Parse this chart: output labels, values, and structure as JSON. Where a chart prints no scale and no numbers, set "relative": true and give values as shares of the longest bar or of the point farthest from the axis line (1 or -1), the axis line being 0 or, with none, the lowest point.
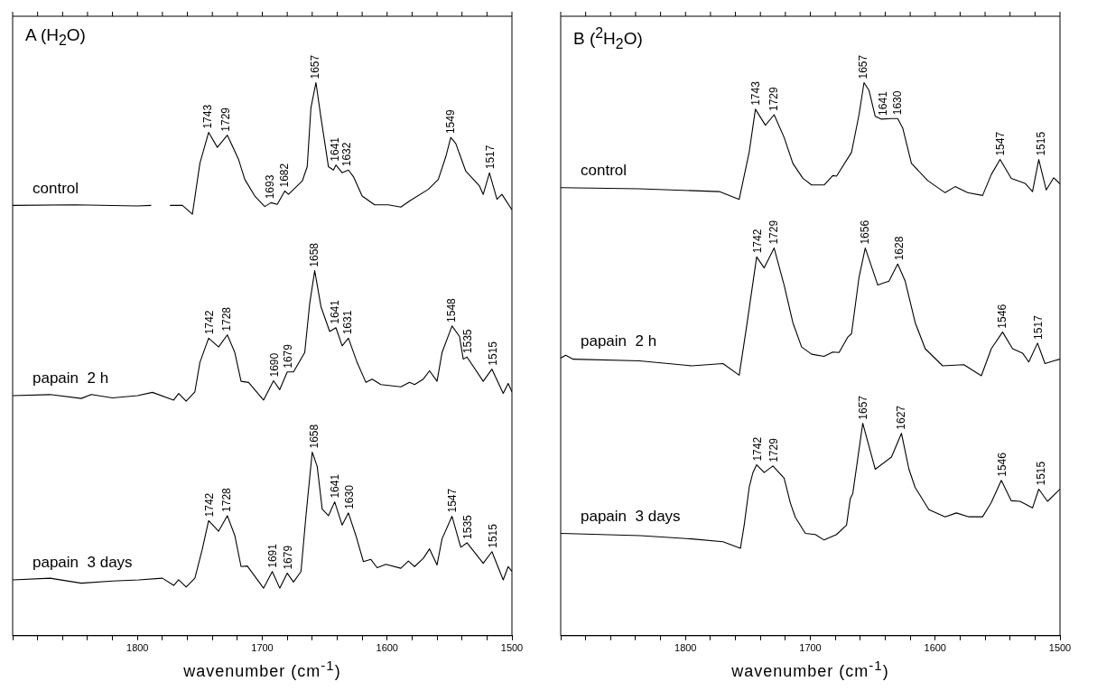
{
  "chart_data": [
    {
      "type": "line",
      "title": "A (H$_{2}$O)",
      "xlabel": "wavenumber (cm$^{-1}$)",
      "relative": true,
      "marker": "none",
      "grid": false,
      "tick_labels": "x",
      "xlim": [
        1900,
        1500
      ],
      "xticks": [
        {
          "value": 1900,
          "label": null
        },
        {
          "value": 1880,
          "label": null
        },
        {
          "value": 1860,
          "label": null
        },
        {
          "value": 1840,
          "label": null
        },
        {
          "value": 1820,
          "label": null
        },
        1800,
        {
          "value": 1780,
          "label": null
        },
        {
          "value": 1760,
          "label": null
        },
        {
          "value": 1740,
          "label": null
        },
        {
          "value": 1720,
          "label": null
        },
        1700,
        {
          "value": 1680,
          "label": null
        },
        {
          "value": 1660,
          "label": null
        },
        {
          "value": 1640,
          "label": null
        },
        {
          "value": 1620,
          "label": null
        },
        1600,
        {
          "value": 1580,
          "label": null
        },
        {
          "value": 1560,
          "label": null
        },
        {
          "value": 1540,
          "label": null
        },
        {
          "value": 1520,
          "label": null
        },
        1500
      ],
      "series": [
        {
          "name": "control",
          "color": "#000000",
          "x": [
            1900,
            1850,
            1800,
            1789,
            1781,
            1774,
            1764,
            1756,
            1750,
            1743,
            1736,
            1728,
            1719,
            1714,
            1706,
            1698,
            1693,
            1688,
            1682,
            1679,
            1668,
            1664,
            1661,
            1657,
            1653,
            1647,
            1643,
            1641,
            1636,
            1631,
            1627,
            1620,
            1610,
            1599,
            1589,
            1582,
            1567,
            1559,
            1553,
            1549,
            1545,
            1537,
            1526,
            1523,
            1518,
            1512,
            1508,
            1500
          ],
          "values": [
            0.778,
            0.779,
            0.777,
            0.778,
            null,
            0.778,
            0.778,
            0.762,
            0.854,
            0.91,
            0.883,
            0.905,
            0.861,
            0.825,
            0.795,
            0.776,
            0.783,
            0.78,
            0.804,
            0.798,
            0.822,
            0.848,
            0.955,
            1,
            0.937,
            0.848,
            0.842,
            0.851,
            0.837,
            0.842,
            0.83,
            0.795,
            0.779,
            0.779,
            0.775,
            0.786,
            0.807,
            0.825,
            0.866,
            0.901,
            0.89,
            0.84,
            0.813,
            0.798,
            0.837,
            0.789,
            0.798,
            0.77
          ]
        },
        {
          "name": "papain  2 h",
          "color": "#000000",
          "x": [
            1900,
            1870,
            1845,
            1837,
            1820,
            1800,
            1788,
            1771,
            1767,
            1761,
            1754,
            1750,
            1743,
            1735,
            1728,
            1722,
            1717,
            1711,
            1699,
            1691,
            1686,
            1680,
            1675,
            1666,
            1662,
            1658,
            1653,
            1646,
            1641,
            1636,
            1631,
            1624,
            1617,
            1612,
            1605,
            1589,
            1582,
            1578,
            1571,
            1566,
            1560,
            1556,
            1548,
            1542,
            1539,
            1536,
            1523,
            1516,
            1507,
            1503,
            1500
          ],
          "values": [
            0.434,
            0.436,
            0.429,
            0.436,
            0.43,
            0.434,
            0.44,
            0.426,
            0.438,
            0.424,
            0.441,
            0.494,
            0.538,
            0.522,
            0.544,
            0.512,
            0.46,
            0.458,
            0.426,
            0.461,
            0.445,
            0.477,
            0.477,
            0.512,
            0.601,
            0.66,
            0.595,
            0.55,
            0.557,
            0.524,
            0.538,
            0.494,
            0.458,
            0.464,
            0.454,
            0.45,
            0.458,
            0.454,
            0.464,
            0.479,
            0.46,
            0.512,
            0.56,
            0.541,
            0.5,
            0.504,
            0.46,
            0.482,
            0.438,
            0.456,
            0.441
          ]
        },
        {
          "name": "papain  3 days",
          "color": "#000000",
          "x": [
            1900,
            1870,
            1845,
            1820,
            1799,
            1780,
            1771,
            1767,
            1761,
            1754,
            1748,
            1743,
            1735,
            1728,
            1722,
            1717,
            1712,
            1699,
            1692,
            1686,
            1680,
            1675,
            1669,
            1665,
            1660,
            1656,
            1652,
            1647,
            1642,
            1636,
            1631,
            1625,
            1619,
            1613,
            1608,
            1601,
            1589,
            1583,
            1578,
            1571,
            1566,
            1560,
            1556,
            1548,
            1541,
            1536,
            1523,
            1516,
            1507,
            1503,
            1500
          ],
          "values": [
            0.101,
            0.104,
            0.095,
            0.099,
            0.101,
            0.104,
            0.091,
            0.101,
            0.088,
            0.104,
            0.157,
            0.208,
            0.189,
            0.217,
            0.181,
            0.125,
            0.126,
            0.086,
            0.116,
            0.086,
            0.113,
            0.097,
            0.116,
            0.217,
            0.332,
            0.306,
            0.229,
            0.217,
            0.242,
            0.2,
            0.222,
            0.181,
            0.134,
            0.138,
            0.123,
            0.129,
            0.122,
            0.135,
            0.125,
            0.14,
            0.157,
            0.128,
            0.175,
            0.216,
            0.16,
            0.168,
            0.131,
            0.152,
            0.101,
            0.125,
            0.116
          ]
        }
      ],
      "annotations": [
        {
          "text": "1743",
          "x": 1743,
          "y": 0.91
        },
        {
          "text": "1729",
          "x": 1729,
          "y": 0.905
        },
        {
          "text": "1693",
          "x": 1693,
          "y": 0.783
        },
        {
          "text": "1682",
          "x": 1682,
          "y": 0.804
        },
        {
          "text": "1657",
          "x": 1657,
          "y": 1
        },
        {
          "text": "1641",
          "x": 1641,
          "y": 0.851
        },
        {
          "text": "1632",
          "x": 1632,
          "y": 0.842
        },
        {
          "text": "1549",
          "x": 1549,
          "y": 0.901
        },
        {
          "text": "1517",
          "x": 1517,
          "y": 0.837
        },
        {
          "text": "1742",
          "x": 1742,
          "y": 0.538
        },
        {
          "text": "1728",
          "x": 1728,
          "y": 0.544
        },
        {
          "text": "1690",
          "x": 1690,
          "y": 0.461
        },
        {
          "text": "1679",
          "x": 1679,
          "y": 0.477
        },
        {
          "text": "1658",
          "x": 1658,
          "y": 0.66
        },
        {
          "text": "1641",
          "x": 1641,
          "y": 0.557
        },
        {
          "text": "1631",
          "x": 1631,
          "y": 0.538
        },
        {
          "text": "1548",
          "x": 1548,
          "y": 0.56
        },
        {
          "text": "1535",
          "x": 1535,
          "y": 0.504
        },
        {
          "text": "1515",
          "x": 1515,
          "y": 0.482
        },
        {
          "text": "1742",
          "x": 1742,
          "y": 0.208
        },
        {
          "text": "1728",
          "x": 1728,
          "y": 0.217
        },
        {
          "text": "1691",
          "x": 1691,
          "y": 0.116
        },
        {
          "text": "1679",
          "x": 1679,
          "y": 0.113
        },
        {
          "text": "1658",
          "x": 1658,
          "y": 0.332
        },
        {
          "text": "1641",
          "x": 1641,
          "y": 0.242
        },
        {
          "text": "1630",
          "x": 1630,
          "y": 0.222
        },
        {
          "text": "1547",
          "x": 1547,
          "y": 0.216
        },
        {
          "text": "1535",
          "x": 1535,
          "y": 0.168
        },
        {
          "text": "1515",
          "x": 1515,
          "y": 0.152
        }
      ]
    },
    {
      "type": "line",
      "title": "B ($^{2}$H$_{2}$O)",
      "xlabel": "wavenumber (cm$^{-1}$)",
      "relative": true,
      "marker": "none",
      "grid": false,
      "tick_labels": "x",
      "xlim": [
        1900,
        1500
      ],
      "xticks": [
        {
          "value": 1900,
          "label": null
        },
        {
          "value": 1880,
          "label": null
        },
        {
          "value": 1860,
          "label": null
        },
        {
          "value": 1840,
          "label": null
        },
        {
          "value": 1820,
          "label": null
        },
        1800,
        {
          "value": 1780,
          "label": null
        },
        {
          "value": 1760,
          "label": null
        },
        {
          "value": 1740,
          "label": null
        },
        {
          "value": 1720,
          "label": null
        },
        1700,
        {
          "value": 1680,
          "label": null
        },
        {
          "value": 1660,
          "label": null
        },
        {
          "value": 1640,
          "label": null
        },
        {
          "value": 1620,
          "label": null
        },
        1600,
        {
          "value": 1580,
          "label": null
        },
        {
          "value": 1560,
          "label": null
        },
        {
          "value": 1540,
          "label": null
        },
        {
          "value": 1520,
          "label": null
        },
        1500
      ],
      "series": [
        {
          "name": "control",
          "color": "#000000",
          "x": [
            1900,
            1837,
            1773,
            1757,
            1749,
            1744,
            1736,
            1729,
            1721,
            1714,
            1706,
            1699,
            1689,
            1682,
            1679,
            1667,
            1661,
            1657,
            1653,
            1648,
            1643,
            1635,
            1630,
            1626,
            1619,
            1606,
            1592,
            1584,
            1574,
            1562,
            1555,
            1548,
            1539,
            1528,
            1522,
            1517,
            1511,
            1505,
            1500
          ],
          "values": [
            0.81,
            0.808,
            0.803,
            0.789,
            0.874,
            0.952,
            0.923,
            0.942,
            0.901,
            0.854,
            0.827,
            0.815,
            0.815,
            0.832,
            0.831,
            0.874,
            0.942,
            1,
            0.986,
            0.939,
            0.934,
            0.935,
            0.935,
            0.918,
            0.854,
            0.823,
            0.801,
            0.812,
            0.801,
            0.796,
            0.834,
            0.861,
            0.827,
            0.818,
            0.803,
            0.861,
            0.806,
            0.828,
            0.817
          ]
        },
        {
          "name": "papain  2 h",
          "color": "#000000",
          "x": [
            1900,
            1896,
            1890,
            1837,
            1795,
            1770,
            1757,
            1751,
            1743,
            1737,
            1729,
            1721,
            1714,
            1707,
            1699,
            1689,
            1682,
            1677,
            1670,
            1667,
            1661,
            1656,
            1650,
            1646,
            1637,
            1630,
            1624,
            1616,
            1608,
            1594,
            1577,
            1563,
            1555,
            1546,
            1538,
            1530,
            1525,
            1518,
            1512,
            1505,
            1500
          ],
          "values": [
            0.502,
            0.507,
            0.5,
            0.497,
            0.488,
            0.492,
            0.471,
            0.56,
            0.685,
            0.665,
            0.701,
            0.634,
            0.566,
            0.522,
            0.509,
            0.505,
            0.513,
            0.512,
            0.54,
            0.546,
            0.648,
            0.701,
            0.661,
            0.634,
            0.641,
            0.672,
            0.641,
            0.566,
            0.519,
            0.488,
            0.49,
            0.47,
            0.519,
            0.549,
            0.519,
            0.511,
            0.495,
            0.529,
            0.492,
            0.497,
            0.5
          ]
        },
        {
          "name": "papain  3 days",
          "color": "#000000",
          "x": [
            1900,
            1836,
            1795,
            1770,
            1756,
            1753,
            1749,
            1746,
            1743,
            1737,
            1730,
            1721,
            1716,
            1712,
            1704,
            1696,
            1689,
            1679,
            1671,
            1668,
            1666,
            1658,
            1648,
            1635,
            1627,
            1621,
            1616,
            1605,
            1592,
            1583,
            1573,
            1562,
            1555,
            1547,
            1539,
            1532,
            1522,
            1517,
            1510,
            1500
          ],
          "values": [
            0.185,
            0.181,
            0.175,
            0.17,
            0.158,
            0.2,
            0.268,
            0.295,
            0.309,
            0.295,
            0.307,
            0.285,
            0.24,
            0.214,
            0.185,
            0.183,
            0.173,
            0.183,
            0.2,
            0.248,
            0.257,
            0.384,
            0.301,
            0.323,
            0.366,
            0.301,
            0.268,
            0.228,
            0.215,
            0.222,
            0.215,
            0.215,
            0.241,
            0.281,
            0.244,
            0.243,
            0.231,
            0.265,
            0.243,
            0.265
          ]
        }
      ],
      "annotations": [
        {
          "text": "1743",
          "x": 1743,
          "y": 0.952
        },
        {
          "text": "1729",
          "x": 1729,
          "y": 0.942
        },
        {
          "text": "1657",
          "x": 1657,
          "y": 1
        },
        {
          "text": "1641",
          "x": 1641,
          "y": 0.934
        },
        {
          "text": "1630",
          "x": 1630,
          "y": 0.935
        },
        {
          "text": "1547",
          "x": 1547,
          "y": 0.861
        },
        {
          "text": "1515",
          "x": 1515,
          "y": 0.861
        },
        {
          "text": "1742",
          "x": 1742,
          "y": 0.685
        },
        {
          "text": "1729",
          "x": 1729,
          "y": 0.701
        },
        {
          "text": "1656",
          "x": 1656,
          "y": 0.701
        },
        {
          "text": "1628",
          "x": 1628,
          "y": 0.672
        },
        {
          "text": "1546",
          "x": 1546,
          "y": 0.549
        },
        {
          "text": "1517",
          "x": 1517,
          "y": 0.529
        },
        {
          "text": "1742",
          "x": 1742,
          "y": 0.309
        },
        {
          "text": "1729",
          "x": 1729,
          "y": 0.307
        },
        {
          "text": "1657",
          "x": 1657,
          "y": 0.384
        },
        {
          "text": "1627",
          "x": 1627,
          "y": 0.366
        },
        {
          "text": "1546",
          "x": 1546,
          "y": 0.281
        },
        {
          "text": "1515",
          "x": 1515,
          "y": 0.265
        }
      ]
    }
  ]
}
